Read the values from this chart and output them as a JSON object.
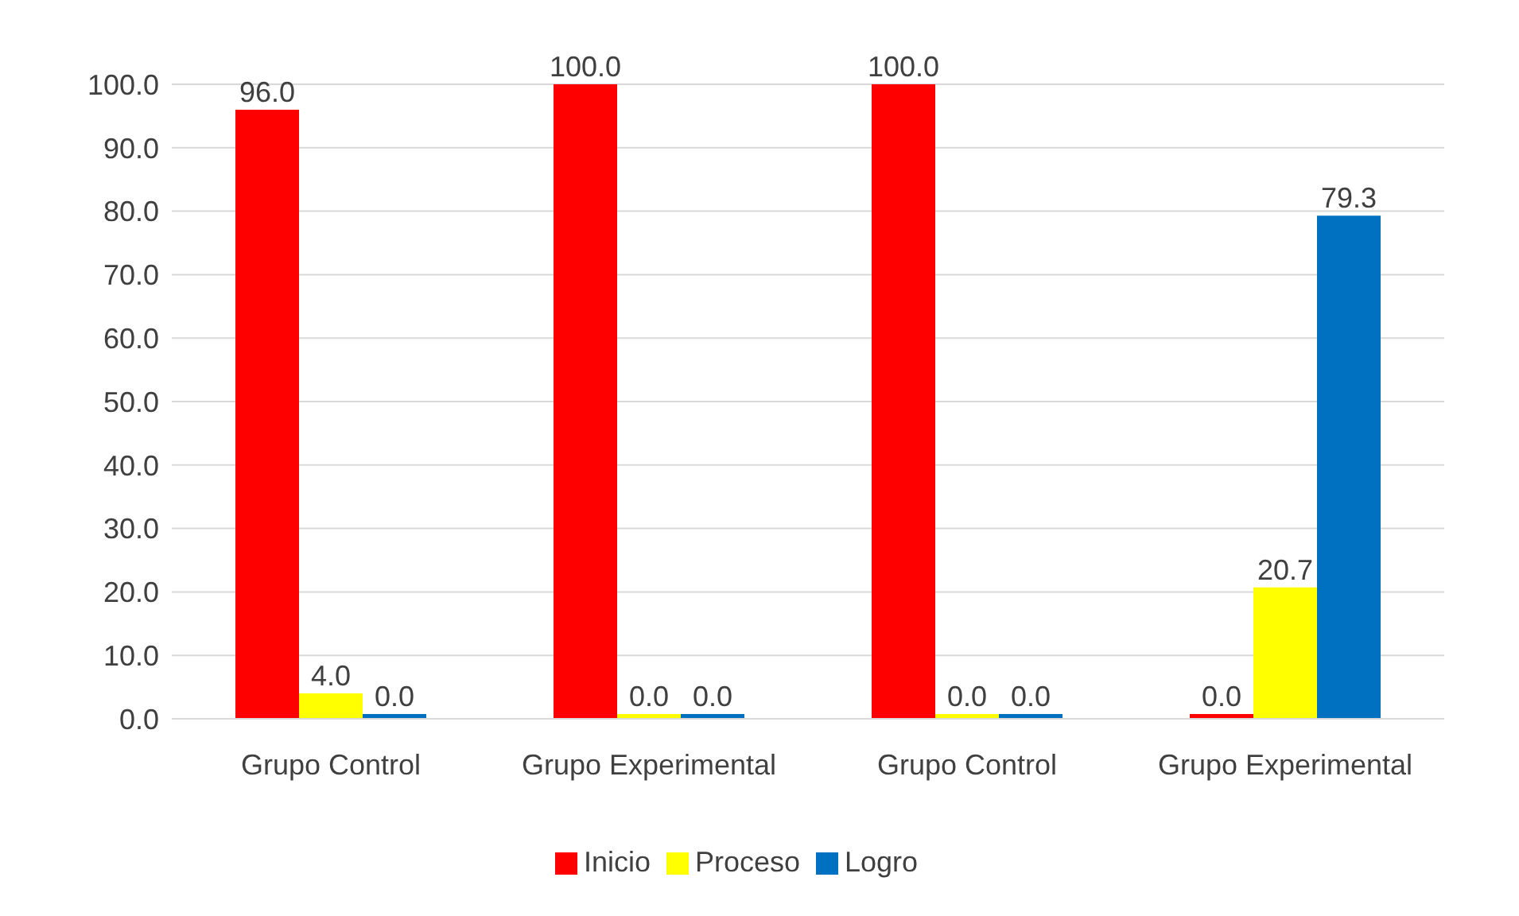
{
  "chart_data": {
    "type": "bar",
    "categories": [
      "Grupo Control",
      "Grupo Experimental",
      "Grupo Control",
      "Grupo Experimental"
    ],
    "series": [
      {
        "name": "Inicio",
        "color": "#ff0000",
        "values": [
          96,
          100,
          100,
          0
        ],
        "value_labels": [
          "96.0",
          "100.0",
          "100.0",
          "0.0"
        ]
      },
      {
        "name": "Proceso",
        "color": "#ffff00",
        "values": [
          4,
          0,
          0,
          20.7
        ],
        "value_labels": [
          "4.0",
          "0.0",
          "0.0",
          "20.7"
        ]
      },
      {
        "name": "Logro",
        "color": "#0070c0",
        "values": [
          0,
          0,
          0,
          79.3
        ],
        "value_labels": [
          "0.0",
          "0.0",
          "0.0",
          "79.3"
        ]
      }
    ],
    "ylim": [
      0,
      100
    ],
    "yticks": [
      {
        "value": 0,
        "label": "0.0"
      },
      {
        "value": 10,
        "label": "10.0"
      },
      {
        "value": 20,
        "label": "20.0"
      },
      {
        "value": 30,
        "label": "30.0"
      },
      {
        "value": 40,
        "label": "40.0"
      },
      {
        "value": 50,
        "label": "50.0"
      },
      {
        "value": 60,
        "label": "60.0"
      },
      {
        "value": 70,
        "label": "70.0"
      },
      {
        "value": 80,
        "label": "80.0"
      },
      {
        "value": 90,
        "label": "90.0"
      },
      {
        "value": 100,
        "label": "100.0"
      }
    ],
    "grid": "y",
    "legend": "bottom"
  }
}
